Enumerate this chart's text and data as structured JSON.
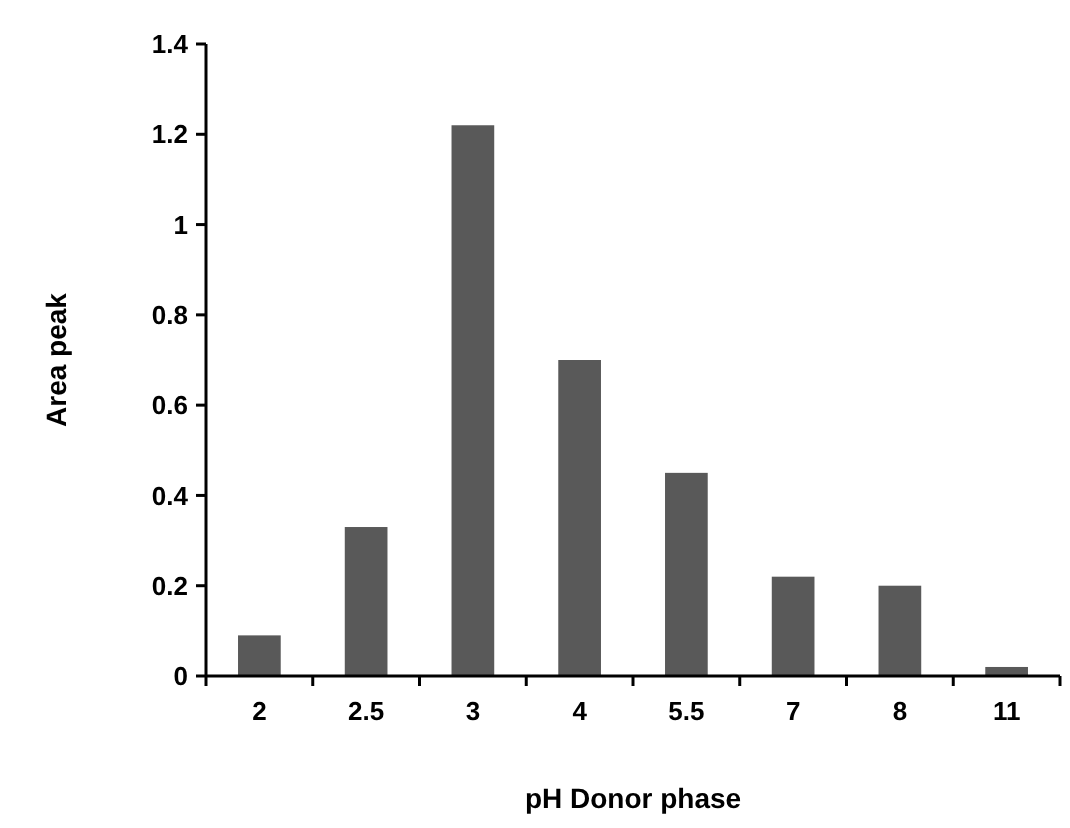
{
  "chart_data": {
    "type": "bar",
    "xlabel": "pH Donor phase",
    "ylabel": "Area peak",
    "categories": [
      "2",
      "2.5",
      "3",
      "4",
      "5.5",
      "7",
      "8",
      "11"
    ],
    "values": [
      0.09,
      0.33,
      1.22,
      0.7,
      0.45,
      0.22,
      0.2,
      0.02
    ],
    "color": "#595959",
    "ylim": [
      0,
      1.4
    ],
    "yticks": [
      0,
      0.2,
      0.4,
      0.6,
      0.8,
      1,
      1.2,
      1.4
    ],
    "grid": false
  }
}
